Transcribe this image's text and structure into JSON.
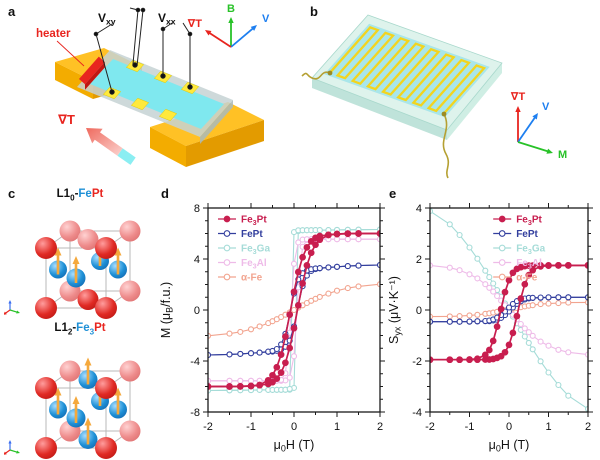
{
  "figure_title": "Anomalous Nernst effect figure",
  "palette": {
    "gold_top": "#ffc125",
    "gold_side": "#e39b00",
    "gold_front": "#f3ac00",
    "substrate": "#c5d2d4",
    "substrate_edge": "#a9babc",
    "film": "#7fe8ef",
    "contact": "#ffe93c",
    "contact_edge": "#dfc808",
    "heater_red": "#e8251f",
    "heater_dark": "#c01712",
    "axis_red": "#e8251f",
    "axis_green": "#28c228",
    "axis_blue": "#1e7ff0",
    "mint_top": "#def3ec",
    "mint_side": "#bfe3da",
    "mint_stroke": "#a8d8cc",
    "meander_bg": "#a9e6ea",
    "meander_line": "#f2d41f",
    "wire": "#b5a032",
    "sphere_red": "#e02a24",
    "sphere_red_back": "#ee8c8c",
    "sphere_blue": "#1e90d6",
    "arrow_orange": "#f5a93d",
    "cube_edge": "#b8b8b8",
    "frame": "#1a1a1a"
  },
  "panels": {
    "a": {
      "label": "a",
      "heater_label": "heater",
      "vxy_label": "V[xy]",
      "vxx_label": "V[xx]",
      "gradT_label": "∇T",
      "axes": {
        "up": "B",
        "upright": "V",
        "upleft": "∇T"
      }
    },
    "b": {
      "label": "b",
      "axes": {
        "up": "∇T",
        "upright": "V",
        "downright": "M"
      }
    },
    "c": {
      "label": "c",
      "cells": [
        {
          "structure": "L10-FePt",
          "title_segments": [
            {
              "t": "L1"
            },
            {
              "t": "0",
              "sub": true
            },
            {
              "t": "-"
            },
            {
              "t": "Fe",
              "c": "#1e90d6"
            },
            {
              "t": "Pt",
              "c": "#e8251f"
            }
          ],
          "fe_sites": "side face centers",
          "pt_sites": "corners and top/bottom face centers"
        },
        {
          "structure": "L12-Fe3Pt",
          "title_segments": [
            {
              "t": "L1"
            },
            {
              "t": "2",
              "sub": true
            },
            {
              "t": "-"
            },
            {
              "t": "Fe",
              "c": "#1e90d6"
            },
            {
              "t": "3",
              "sub": true,
              "c": "#1e90d6"
            },
            {
              "t": "Pt",
              "c": "#e8251f"
            }
          ],
          "fe_sites": "all face centers",
          "pt_sites": "corners"
        }
      ]
    },
    "d": {
      "label": "d"
    },
    "e": {
      "label": "e"
    }
  },
  "chart_data": [
    {
      "id": "d",
      "type": "line",
      "xlabel": "μ[0]H (T)",
      "ylabel": "M (μ[B]/f.u.)",
      "xlim": [
        -2,
        2
      ],
      "ylim": [
        -8,
        8
      ],
      "xticks": [
        -2,
        -1,
        0,
        1,
        2
      ],
      "yticks": [
        -8,
        -4,
        0,
        4,
        8
      ],
      "x_minor_step": 0.5,
      "y_minor_step": 1,
      "grid": false,
      "legend_pos": "top-left",
      "x": [
        -2,
        -1.5,
        -1.25,
        -1,
        -0.8,
        -0.6,
        -0.5,
        -0.4,
        -0.3,
        -0.2,
        -0.1,
        0,
        0.1,
        0.2,
        0.3,
        0.4,
        0.5,
        0.6,
        0.8,
        1,
        1.25,
        1.5,
        2
      ],
      "draw_order": [
        2,
        3,
        4,
        1,
        0
      ],
      "series": [
        {
          "name": "Fe[3]Pt",
          "color": "#c81e4f",
          "filled": true,
          "branches": [
            [
              -6,
              -6,
              -5.99,
              -5.96,
              -5.9,
              -5.8,
              -5.66,
              -5.38,
              -4.91,
              -4.14,
              -2.98,
              -1.43,
              0.36,
              2.09,
              3.5,
              4.49,
              5.12,
              5.51,
              5.88,
              5.96,
              5.99,
              6,
              6
            ],
            [
              -6,
              -6,
              -5.99,
              -5.96,
              -5.88,
              -5.51,
              -5.12,
              -4.49,
              -3.5,
              -2.09,
              -0.36,
              1.43,
              2.98,
              4.14,
              4.91,
              5.38,
              5.66,
              5.8,
              5.9,
              5.96,
              5.99,
              6,
              6
            ]
          ]
        },
        {
          "name": "FePt",
          "color": "#333f9e",
          "filled": false,
          "branches": [
            [
              -3.53,
              -3.48,
              -3.44,
              -3.39,
              -3.34,
              -3.29,
              -3.26,
              -3.2,
              -3.1,
              -2.89,
              -2.4,
              -1.29,
              0.38,
              1.87,
              2.7,
              3.06,
              3.21,
              3.26,
              3.34,
              3.39,
              3.44,
              3.48,
              3.53
            ],
            [
              -3.53,
              -3.48,
              -3.44,
              -3.39,
              -3.34,
              -3.26,
              -3.21,
              -3.06,
              -2.7,
              -1.87,
              -0.38,
              1.29,
              2.4,
              2.89,
              3.1,
              3.2,
              3.26,
              3.29,
              3.34,
              3.39,
              3.44,
              3.48,
              3.53
            ]
          ]
        },
        {
          "name": "Fe[3]Ga",
          "color": "#a6dcd8",
          "filled": false,
          "branches": [
            [
              -6.31,
              -6.3,
              -6.29,
              -6.28,
              -6.27,
              -6.27,
              -6.27,
              -6.26,
              -6.26,
              -6.26,
              -6.25,
              -6.11,
              6.19,
              6.25,
              6.26,
              6.26,
              6.27,
              6.27,
              6.27,
              6.28,
              6.29,
              6.3,
              6.31
            ],
            [
              -6.31,
              -6.3,
              -6.29,
              -6.28,
              -6.27,
              -6.27,
              -6.27,
              -6.26,
              -6.26,
              -6.25,
              -6.19,
              6.11,
              6.25,
              6.26,
              6.26,
              6.26,
              6.27,
              6.27,
              6.27,
              6.28,
              6.29,
              6.3,
              6.31
            ]
          ]
        },
        {
          "name": "Fe[3]Al",
          "color": "#eebbe8",
          "filled": false,
          "branches": [
            [
              -5.55,
              -5.55,
              -5.55,
              -5.55,
              -5.55,
              -5.55,
              -5.55,
              -5.55,
              -5.55,
              -5.52,
              -5.3,
              -3.62,
              1.78,
              4.96,
              5.48,
              5.54,
              5.55,
              5.55,
              5.55,
              5.55,
              5.55,
              5.55,
              5.55
            ],
            [
              -5.55,
              -5.55,
              -5.55,
              -5.55,
              -5.55,
              -5.55,
              -5.55,
              -5.54,
              -5.48,
              -4.96,
              -1.78,
              3.62,
              5.3,
              5.52,
              5.55,
              5.55,
              5.55,
              5.55,
              5.55,
              5.55,
              5.55,
              5.55,
              5.55
            ]
          ]
        },
        {
          "name": "α-Fe",
          "color": "#f2a48f",
          "filled": false,
          "branches": [
            [
              -2.02,
              -1.85,
              -1.72,
              -1.51,
              -1.29,
              -1.03,
              -0.88,
              -0.72,
              -0.55,
              -0.37,
              -0.19,
              0,
              0.19,
              0.37,
              0.55,
              0.72,
              0.88,
              1.03,
              1.29,
              1.51,
              1.72,
              1.85,
              2.02
            ]
          ]
        }
      ]
    },
    {
      "id": "e",
      "type": "line",
      "xlabel": "μ[0]H (T)",
      "ylabel": "S[yx] (μV·K⁻¹)",
      "xlim": [
        -2,
        2
      ],
      "ylim": [
        -4,
        4
      ],
      "xticks": [
        -2,
        -1,
        0,
        1,
        2
      ],
      "yticks": [
        -4,
        -2,
        0,
        2,
        4
      ],
      "x_minor_step": 0.5,
      "y_minor_step": 0.5,
      "grid": false,
      "legend_pos": "top-right",
      "x": [
        -2,
        -1.5,
        -1.25,
        -1,
        -0.8,
        -0.6,
        -0.5,
        -0.4,
        -0.3,
        -0.2,
        -0.1,
        0,
        0.1,
        0.2,
        0.3,
        0.4,
        0.5,
        0.6,
        0.8,
        1,
        1.25,
        1.5,
        2
      ],
      "draw_order": [
        2,
        3,
        4,
        1,
        0
      ],
      "series": [
        {
          "name": "Fe[3]Pt",
          "color": "#c81e4f",
          "filled": true,
          "branches": [
            [
              -1.95,
              -1.95,
              -1.95,
              -1.95,
              -1.95,
              -1.94,
              -1.94,
              -1.92,
              -1.88,
              -1.81,
              -1.66,
              -1.37,
              -0.9,
              -0.24,
              0.45,
              1.01,
              1.37,
              1.56,
              1.71,
              1.74,
              1.75,
              1.75,
              1.75
            ],
            [
              -1.95,
              -1.95,
              -1.95,
              -1.94,
              -1.91,
              -1.76,
              -1.57,
              -1.21,
              -0.65,
              0.04,
              0.7,
              1.17,
              1.46,
              1.61,
              1.68,
              1.72,
              1.74,
              1.74,
              1.75,
              1.75,
              1.75,
              1.75,
              1.75
            ]
          ]
        },
        {
          "name": "FePt",
          "color": "#333f9e",
          "filled": false,
          "branches": [
            [
              -0.46,
              -0.46,
              -0.46,
              -0.46,
              -0.45,
              -0.44,
              -0.44,
              -0.41,
              -0.38,
              -0.31,
              -0.2,
              -0.06,
              0.1,
              0.24,
              0.34,
              0.41,
              0.45,
              0.47,
              0.48,
              0.49,
              0.5,
              0.5,
              0.5
            ],
            [
              -0.46,
              -0.46,
              -0.46,
              -0.45,
              -0.44,
              -0.43,
              -0.41,
              -0.37,
              -0.3,
              -0.2,
              -0.06,
              0.1,
              0.24,
              0.35,
              0.42,
              0.45,
              0.48,
              0.48,
              0.49,
              0.5,
              0.5,
              0.5,
              0.5
            ]
          ]
        },
        {
          "name": "Fe[3]Ga",
          "color": "#a6dcd8",
          "filled": false,
          "branches": [
            [
              3.88,
              3.36,
              2.94,
              2.45,
              2.01,
              1.54,
              1.29,
              1.04,
              0.78,
              0.52,
              0.26,
              0,
              -0.26,
              -0.52,
              -0.78,
              -1.04,
              -1.29,
              -1.54,
              -2.01,
              -2.45,
              -2.94,
              -3.36,
              -3.88
            ]
          ]
        },
        {
          "name": "Fe[3]Al",
          "color": "#eebbe8",
          "filled": false,
          "branches": [
            [
              1.75,
              1.66,
              1.56,
              1.4,
              1.24,
              1.01,
              0.87,
              0.72,
              0.55,
              0.37,
              0.19,
              0,
              -0.19,
              -0.37,
              -0.55,
              -0.72,
              -0.87,
              -1.01,
              -1.24,
              -1.4,
              -1.56,
              -1.66,
              -1.75
            ]
          ]
        },
        {
          "name": "α-Fe",
          "color": "#f2a48f",
          "filled": false,
          "branches": [
            [
              -0.26,
              -0.25,
              -0.24,
              -0.21,
              -0.19,
              -0.15,
              -0.13,
              -0.1,
              -0.07,
              -0.04,
              -0.01,
              0.02,
              0.05,
              0.08,
              0.11,
              0.14,
              0.17,
              0.19,
              0.23,
              0.25,
              0.27,
              0.29,
              0.3
            ]
          ]
        }
      ]
    }
  ]
}
